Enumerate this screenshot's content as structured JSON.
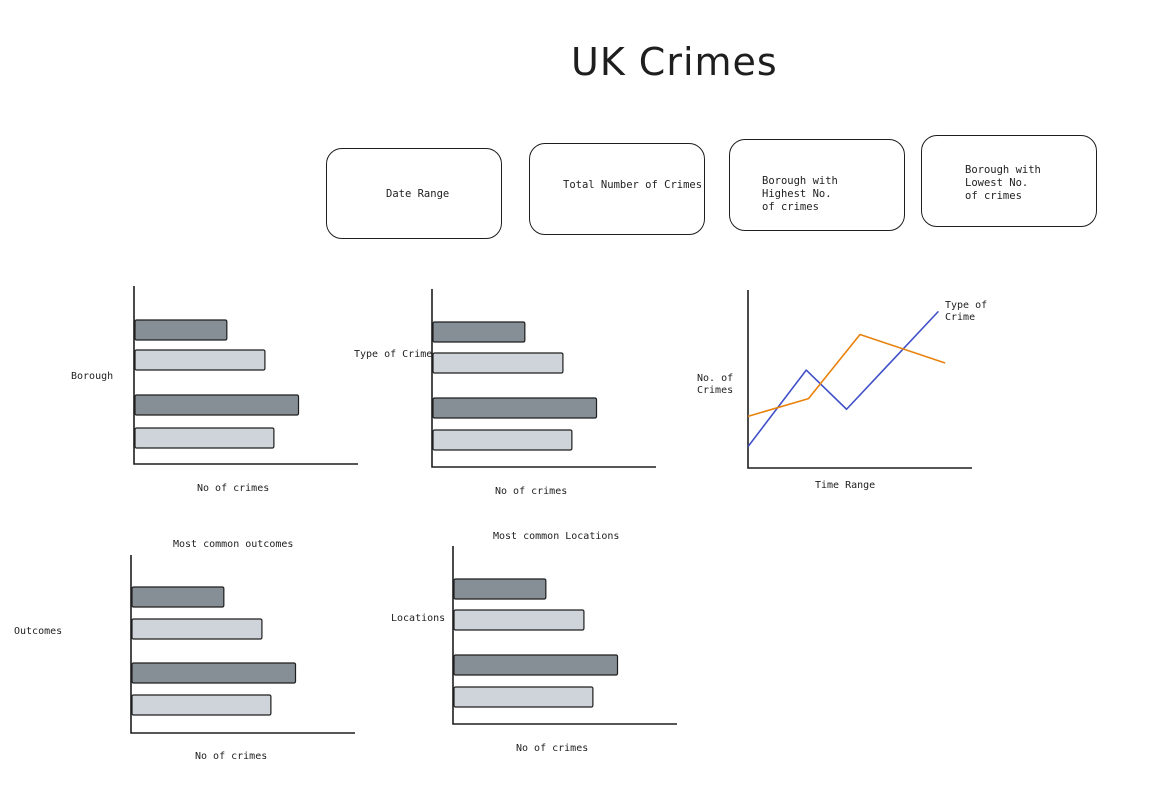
{
  "page": {
    "title": "UK Crimes"
  },
  "cards": [
    {
      "id": "date-range",
      "label": "Date Range"
    },
    {
      "id": "total-crimes",
      "label": "Total Number of Crimes"
    },
    {
      "id": "highest-borough",
      "label": "Borough with Highest No. of crimes"
    },
    {
      "id": "lowest-borough",
      "label": "Borough with Lowest No. of crimes"
    }
  ],
  "charts": {
    "borough": {
      "ylabel": "Borough",
      "xlabel": "No of crimes"
    },
    "type": {
      "ylabel": "Type of Crime",
      "xlabel": "No of crimes"
    },
    "trend": {
      "ylabel_line1": "No. of",
      "ylabel_line2": "Crimes",
      "xlabel": "Time Range",
      "legend_line1": "Type of",
      "legend_line2": "Crime"
    },
    "outcomes": {
      "title": "Most common outcomes",
      "ylabel": "Outcomes",
      "xlabel": "No of crimes"
    },
    "locations": {
      "title": "Most common Locations",
      "ylabel": "Locations",
      "xlabel": "No of crimes"
    }
  },
  "chart_data": [
    {
      "type": "bar",
      "orientation": "horizontal",
      "ylabel": "Borough",
      "xlabel": "No of crimes",
      "values": [
        0.41,
        0.58,
        0.73,
        0.62
      ],
      "shades": [
        "dark",
        "light",
        "dark",
        "light"
      ]
    },
    {
      "type": "bar",
      "orientation": "horizontal",
      "ylabel": "Type of Crime",
      "xlabel": "No of crimes",
      "values": [
        0.41,
        0.58,
        0.73,
        0.62
      ],
      "shades": [
        "dark",
        "light",
        "dark",
        "light"
      ]
    },
    {
      "type": "line",
      "ylabel": "No. of Crimes",
      "xlabel": "Time Range",
      "series": [
        {
          "color": "#4050c8",
          "values": [
            [
              0.0,
              0.12
            ],
            [
              0.26,
              0.55
            ],
            [
              0.44,
              0.33
            ],
            [
              0.85,
              0.88
            ]
          ]
        },
        {
          "color": "#e8820c",
          "values": [
            [
              0.0,
              0.29
            ],
            [
              0.27,
              0.39
            ],
            [
              0.5,
              0.75
            ],
            [
              0.88,
              0.59
            ]
          ]
        }
      ]
    },
    {
      "type": "bar",
      "orientation": "horizontal",
      "title": "Most common outcomes",
      "ylabel": "Outcomes",
      "xlabel": "No of crimes",
      "values": [
        0.41,
        0.58,
        0.73,
        0.62
      ],
      "shades": [
        "dark",
        "light",
        "dark",
        "light"
      ]
    },
    {
      "type": "bar",
      "orientation": "horizontal",
      "title": "Most common Locations",
      "ylabel": "Locations",
      "xlabel": "No of crimes",
      "values": [
        0.41,
        0.58,
        0.73,
        0.62
      ],
      "shades": [
        "dark",
        "light",
        "dark",
        "light"
      ]
    }
  ]
}
